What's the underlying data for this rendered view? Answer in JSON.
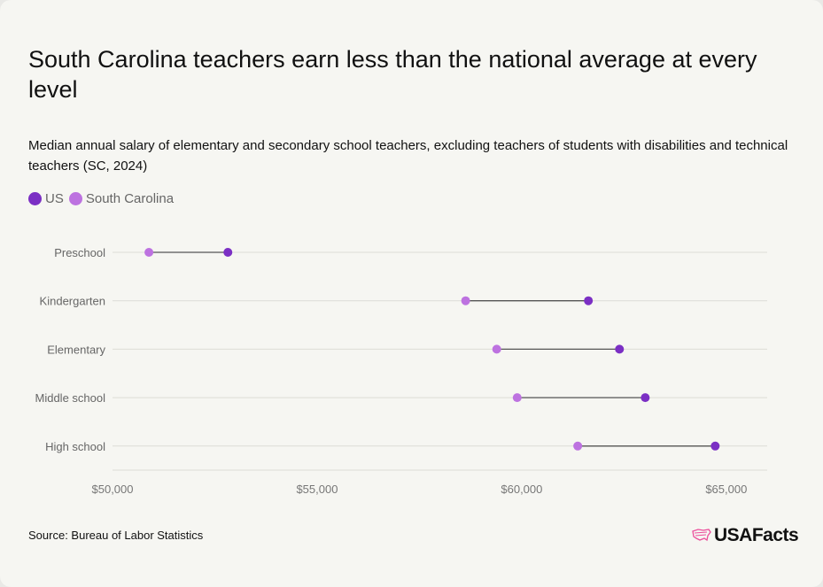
{
  "title": "South Carolina teachers earn less than the national average at every level",
  "subtitle": "Median annual salary of elementary and secondary school teachers, excluding teachers of students with disabilities and technical teachers (SC, 2024)",
  "source": "Source: Bureau of Labor Statistics",
  "logo": "USAFacts",
  "colors": {
    "us": "#7b2fc4",
    "sc": "#bd72e0",
    "line": "#555555",
    "grid": "#dcdcd6"
  },
  "chart_data": {
    "type": "dumbbell",
    "title": "South Carolina teachers earn less than the national average at every level",
    "categories": [
      "Preschool",
      "Kindergarten",
      "Elementary",
      "Middle school",
      "High school"
    ],
    "series": [
      {
        "name": "US",
        "values": [
          52820,
          61630,
          62390,
          63020,
          64730
        ]
      },
      {
        "name": "South Carolina",
        "values": [
          50890,
          58630,
          59390,
          59890,
          61370
        ]
      }
    ],
    "xlim": [
      50000,
      66000
    ],
    "xticks": [
      50000,
      55000,
      60000,
      65000
    ],
    "xtick_labels": [
      "$50,000",
      "$55,000",
      "$60,000",
      "$65,000"
    ],
    "legend": "top-left",
    "grid": true
  }
}
